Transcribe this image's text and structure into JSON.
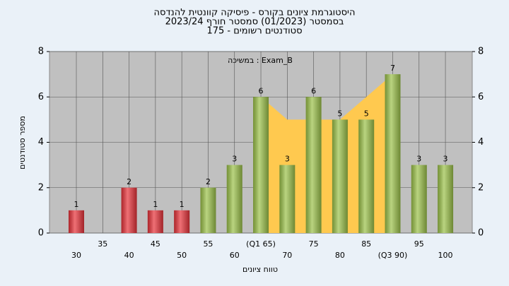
{
  "chart_data": {
    "type": "bar",
    "title": [
      "היסטוגרמת ציונים בקורס - פיסיקה קוונטית להנדסה",
      "בסמסטר  (01/2023)  סמסטר חורף 2023/24",
      "סטודנטים רשומים - 175"
    ],
    "annotation": "במשיכה : Exam_B",
    "x_label": "טווח ציונים",
    "y_label": "מספר סטודנטים",
    "categories": [
      "30",
      "35",
      "40",
      "45",
      "50",
      "55",
      "60",
      "(Q1 65)",
      "70",
      "75",
      "80",
      "85",
      "(Q3 90)",
      "95",
      "100"
    ],
    "values": [
      1,
      null,
      2,
      1,
      1,
      2,
      3,
      6,
      3,
      6,
      5,
      5,
      7,
      3,
      3
    ],
    "colors": [
      "#e8333a",
      "#e8333a",
      "#e8333a",
      "#e8333a",
      "#e8333a",
      "#9cc24a",
      "#9cc24a",
      "#9cc24a",
      "#9cc24a",
      "#9cc24a",
      "#9cc24a",
      "#9cc24a",
      "#9cc24a",
      "#9cc24a",
      "#9cc24a"
    ],
    "band": {
      "color": "#ffc94f",
      "values": [
        null,
        null,
        null,
        null,
        null,
        null,
        null,
        6,
        5,
        5,
        5,
        6,
        7,
        null,
        null
      ]
    },
    "ylim": [
      0,
      8
    ],
    "yticks": [
      0,
      2,
      4,
      6,
      8
    ],
    "y2lim": [
      0,
      8
    ],
    "y2ticks": [
      0,
      2,
      4,
      6,
      8
    ],
    "grid": true
  }
}
